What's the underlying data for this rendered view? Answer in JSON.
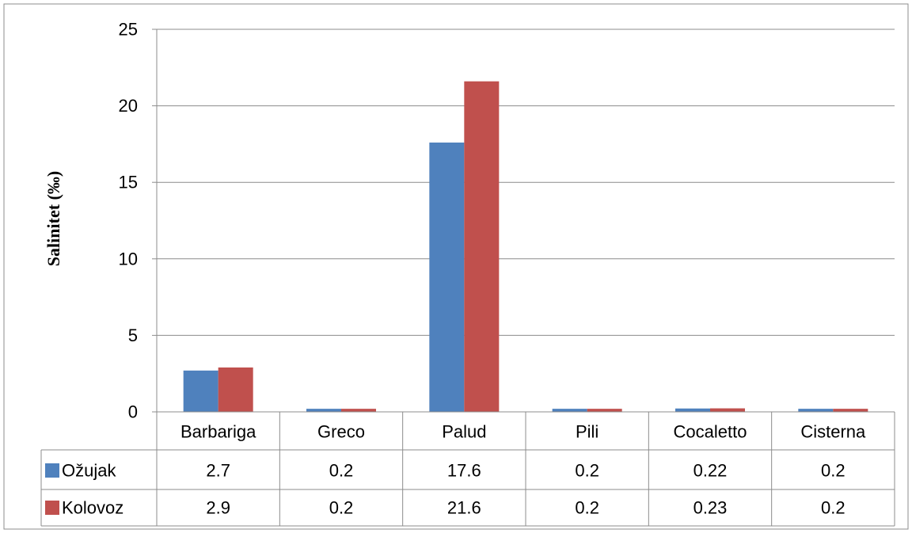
{
  "chart_data": {
    "type": "bar",
    "ylabel": "Salinitet (‰)",
    "ylim": [
      0,
      25
    ],
    "yticks": [
      0,
      5,
      10,
      15,
      20,
      25
    ],
    "grid": true,
    "legend": "data-table-left",
    "categories": [
      "Barbariga",
      "Greco",
      "Palud",
      "Pili",
      "Cocaletto",
      "Cisterna"
    ],
    "series": [
      {
        "name": "Ožujak",
        "color": "#4F81BD",
        "values": [
          2.7,
          0.2,
          17.6,
          0.2,
          0.22,
          0.2
        ]
      },
      {
        "name": "Kolovoz",
        "color": "#C0504D",
        "values": [
          2.9,
          0.2,
          21.6,
          0.2,
          0.23,
          0.2
        ]
      }
    ]
  }
}
